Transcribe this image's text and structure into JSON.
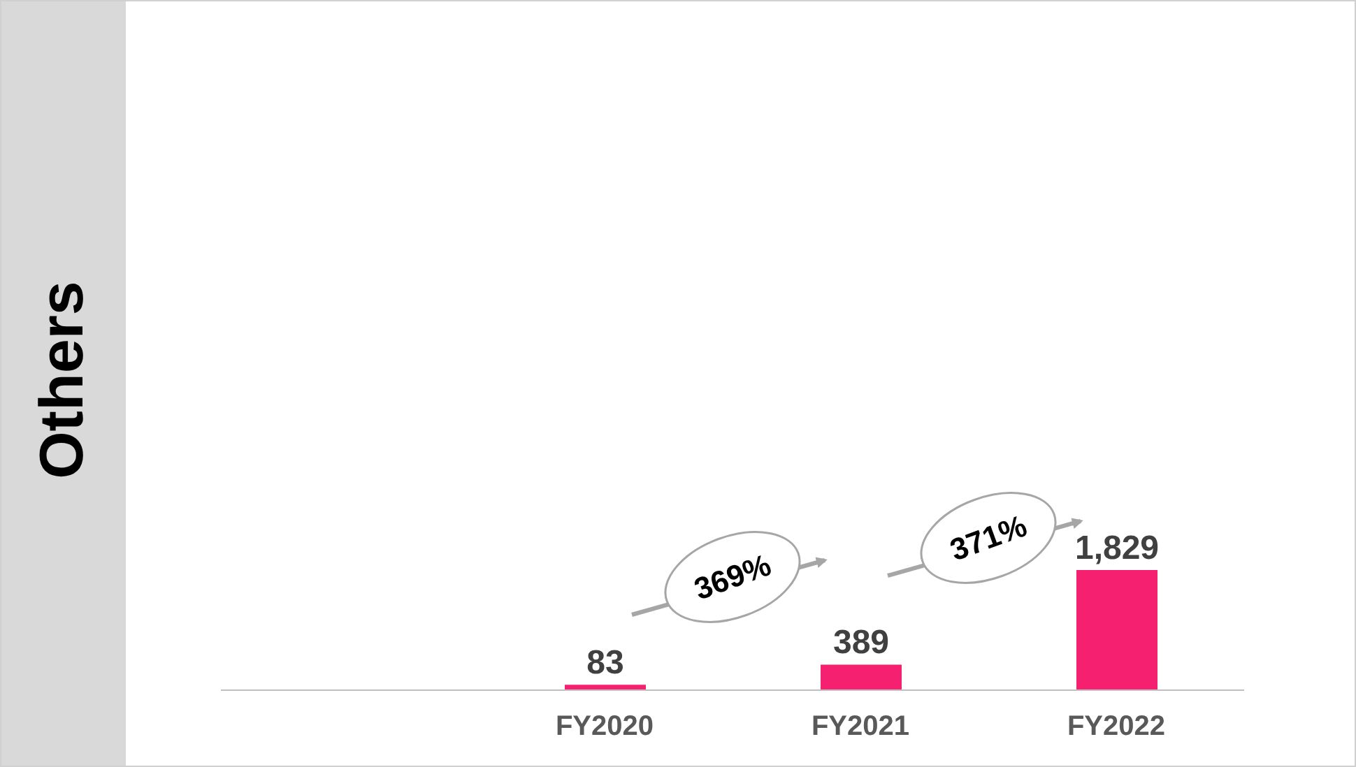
{
  "chart_data": {
    "type": "bar",
    "ylabel": "Others",
    "categories": [
      null,
      "FY2020",
      "FY2021",
      "FY2022"
    ],
    "values": [
      null,
      83,
      389,
      1829
    ],
    "value_labels": [
      null,
      "83",
      "389",
      "1,829"
    ],
    "color": "#f5206f",
    "annotations": [
      "369%",
      "371%"
    ]
  }
}
